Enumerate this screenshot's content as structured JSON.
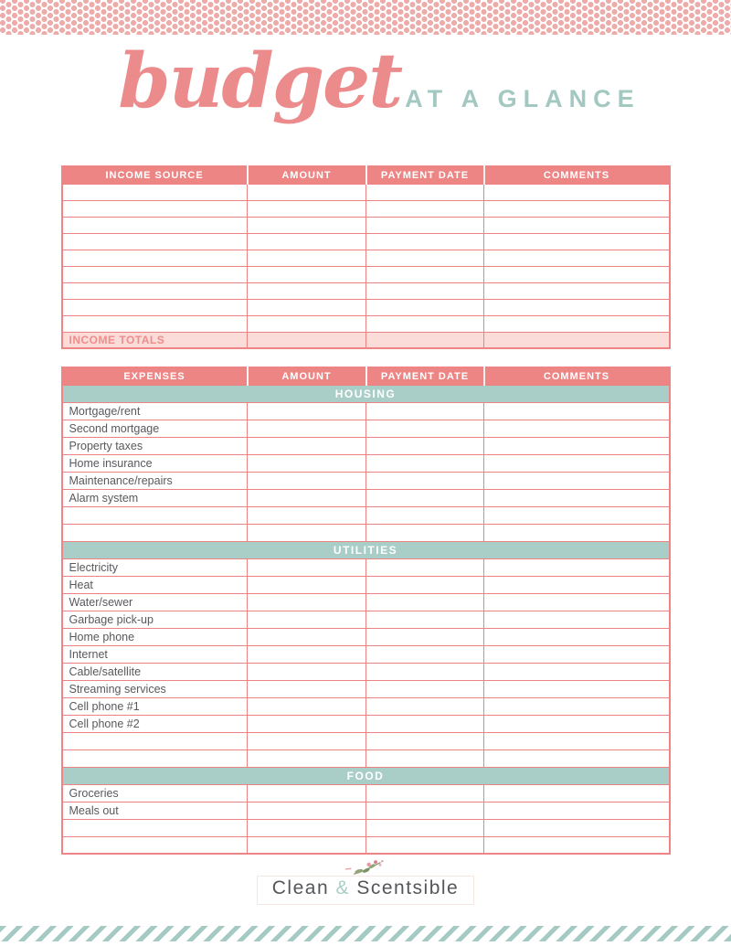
{
  "title": {
    "script": "budget",
    "suffix": "AT A GLANCE"
  },
  "income_table": {
    "headers": [
      "INCOME SOURCE",
      "AMOUNT",
      "PAYMENT DATE",
      "COMMENTS"
    ],
    "empty_rows": 9,
    "totals_label": "INCOME TOTALS"
  },
  "expense_table": {
    "headers": [
      "EXPENSES",
      "AMOUNT",
      "PAYMENT DATE",
      "COMMENTS"
    ],
    "sections": [
      {
        "name": "HOUSING",
        "items": [
          "Mortgage/rent",
          "Second mortgage",
          "Property taxes",
          "Home insurance",
          "Maintenance/repairs",
          "Alarm system"
        ],
        "empty_rows": 2
      },
      {
        "name": "UTILITIES",
        "items": [
          "Electricity",
          "Heat",
          "Water/sewer",
          "Garbage pick-up",
          "Home phone",
          "Internet",
          "Cable/satellite",
          "Streaming services",
          "Cell phone #1",
          "Cell phone #2"
        ],
        "empty_rows": 2
      },
      {
        "name": "FOOD",
        "items": [
          "Groceries",
          "Meals out"
        ],
        "empty_rows": 2
      }
    ]
  },
  "footer": {
    "brand_clean": "Clean",
    "brand_amp": "&",
    "brand_scentsible": "Scentsible"
  },
  "colors": {
    "header_pink": "#ee8585",
    "border_pink": "#ec8383",
    "totals_light_pink": "#fbdcd9",
    "totals_text_pink": "#ef8c8c",
    "section_teal": "#a9cdc7",
    "title_pink": "#ec8b8b",
    "title_teal": "#a2c8c1",
    "label_gray": "#58595c",
    "dot_pink": "#edaba9",
    "stripe_teal": "#a5cac3"
  }
}
